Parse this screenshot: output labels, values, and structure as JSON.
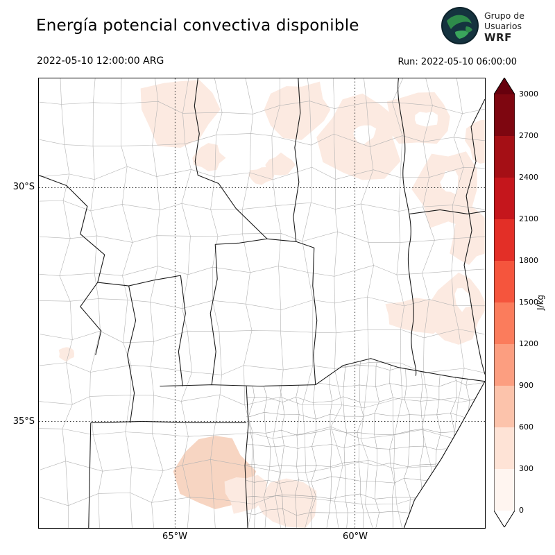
{
  "header": {
    "title": "Energía potencial convectiva disponible",
    "logo": {
      "line1": "Grupo de",
      "line2": "Usuarios",
      "line3": "WRF"
    }
  },
  "subheader": {
    "valid_time": "2022-05-10 12:00:00 ARG",
    "run_time": "Run: 2022-05-10 06:00:00"
  },
  "map": {
    "lat_ticks": [
      {
        "label": "30°S"
      },
      {
        "label": "35°S"
      }
    ],
    "lon_ticks": [
      {
        "label": "65°W"
      },
      {
        "label": "60°W"
      }
    ],
    "fill_colors": {
      "light": "#fceae1",
      "medium": "#f7d5c2",
      "hole": "#ffffff"
    }
  },
  "colorbar": {
    "unit": "J/kg",
    "ticks": [
      "3000",
      "2700",
      "2400",
      "2100",
      "1800",
      "1500",
      "1200",
      "900",
      "600",
      "300",
      "0"
    ],
    "colors_top_to_bottom": [
      "#7e0610",
      "#a50f15",
      "#c5161c",
      "#e32f27",
      "#f5553d",
      "#fb7c5c",
      "#fc9e80",
      "#fcc3ab",
      "#fee3d6",
      "#fff5f0"
    ],
    "over_color": "#67000d",
    "under_color": "#ffffff"
  },
  "chart_data": {
    "type": "heatmap",
    "title": "Energía potencial convectiva disponible",
    "variable": "CAPE (convective available potential energy)",
    "unit": "J/kg",
    "valid_time": "2022-05-10 12:00:00 ARG",
    "run": "2022-05-10 06:00:00",
    "colorbar_range": [
      0,
      3000
    ],
    "colorbar_step": 300,
    "colorbar_extend": "both",
    "lat_gridlines": [
      "30°S",
      "35°S"
    ],
    "lon_gridlines": [
      "65°W",
      "60°W"
    ],
    "shaded_regions": [
      {
        "area": "northeast of domain (upper-right quadrant)",
        "value_range": "0-600"
      },
      {
        "area": "eastern edge, mid latitudes",
        "value_range": "0-300"
      },
      {
        "area": "south-center (lower-left of center)",
        "value_range": "0-600"
      },
      {
        "area": "remainder of domain",
        "value_range": "~0"
      }
    ]
  }
}
